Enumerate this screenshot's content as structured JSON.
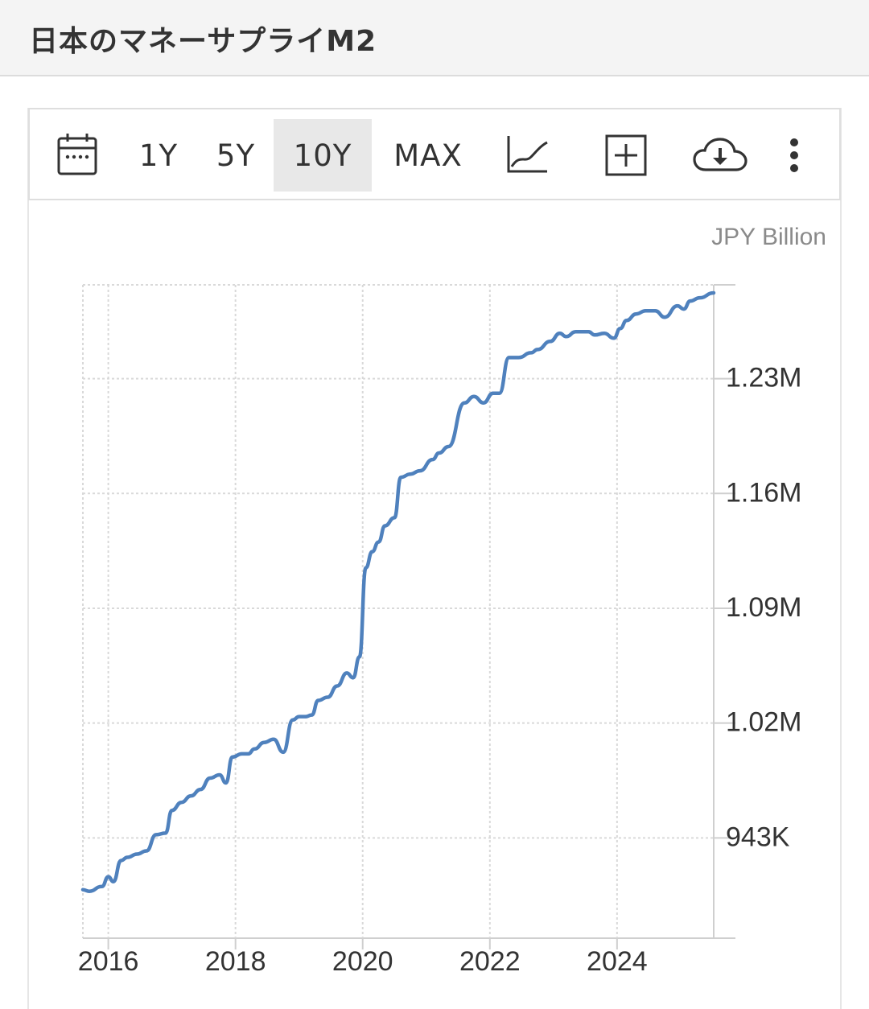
{
  "header": {
    "title": "日本のマネーサプライM2"
  },
  "toolbar": {
    "ranges": [
      "1Y",
      "5Y",
      "10Y",
      "MAX"
    ],
    "active_range": "10Y",
    "icons": [
      "calendar-icon",
      "line-chart-icon",
      "add-box-icon",
      "cloud-download-icon",
      "more-vertical-icon"
    ]
  },
  "colors": {
    "line": "#4f81bd",
    "grid": "#d9d9d9",
    "axis_text": "#333333",
    "unit_text": "#8a8a8a"
  },
  "chart_data": {
    "type": "line",
    "unit": "JPY Billion",
    "x_ticks": [
      "2016",
      "2018",
      "2020",
      "2022",
      "2024"
    ],
    "x_tick_values": [
      2016,
      2018,
      2020,
      2022,
      2024
    ],
    "y_ticks": [
      "943K",
      "1.02M",
      "1.09M",
      "1.16M",
      "1.23M"
    ],
    "y_tick_values": [
      943000,
      1014000,
      1085000,
      1156000,
      1227000
    ],
    "xlim": [
      2015.6,
      2025.52
    ],
    "ylim": [
      881000,
      1285000
    ],
    "grid": true,
    "series": [
      {
        "x": [
          2015.6,
          2015.7,
          2015.9,
          2016.0,
          2016.08,
          2016.2,
          2016.3,
          2016.45,
          2016.6,
          2016.75,
          2016.9,
          2017.0,
          2017.15,
          2017.3,
          2017.45,
          2017.6,
          2017.75,
          2017.85,
          2017.95,
          2018.1,
          2018.2,
          2018.3,
          2018.45,
          2018.6,
          2018.75,
          2018.9,
          2019.0,
          2019.1,
          2019.2,
          2019.3,
          2019.45,
          2019.6,
          2019.75,
          2019.85,
          2019.95,
          2020.05,
          2020.15,
          2020.25,
          2020.35,
          2020.5,
          2020.6,
          2020.75,
          2020.9,
          2021.1,
          2021.2,
          2021.35,
          2021.6,
          2021.75,
          2021.9,
          2022.05,
          2022.15,
          2022.3,
          2022.45,
          2022.65,
          2022.75,
          2022.95,
          2023.1,
          2023.2,
          2023.35,
          2023.55,
          2023.65,
          2023.8,
          2023.95,
          2024.05,
          2024.15,
          2024.3,
          2024.45,
          2024.6,
          2024.75,
          2024.95,
          2025.05,
          2025.15,
          2025.3,
          2025.52
        ],
        "values": [
          911000,
          910000,
          913000,
          919000,
          916000,
          929000,
          931000,
          933000,
          935000,
          945000,
          946000,
          960000,
          965000,
          969000,
          973000,
          980000,
          982000,
          977000,
          993000,
          995000,
          995000,
          998000,
          1002000,
          1004000,
          996000,
          1016000,
          1018000,
          1018000,
          1019000,
          1028000,
          1030000,
          1037000,
          1045000,
          1042000,
          1055000,
          1110000,
          1120000,
          1126000,
          1136000,
          1141000,
          1166000,
          1168000,
          1170000,
          1177000,
          1181000,
          1185000,
          1212000,
          1216000,
          1212000,
          1218000,
          1218000,
          1240000,
          1240000,
          1243000,
          1245000,
          1250000,
          1255000,
          1253000,
          1256000,
          1256000,
          1254000,
          1255000,
          1252000,
          1258000,
          1263000,
          1267000,
          1269000,
          1269000,
          1265000,
          1272000,
          1270000,
          1275000,
          1277000,
          1280000
        ]
      }
    ]
  }
}
